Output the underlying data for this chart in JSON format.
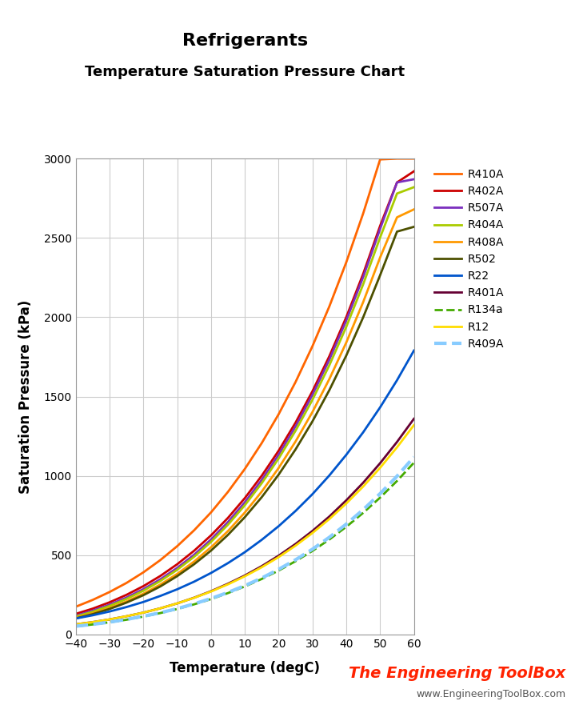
{
  "title": "Refrigerants",
  "subtitle": "Temperature Saturation Pressure Chart",
  "xlabel": "Temperature (degC)",
  "ylabel": "Saturation Pressure (kPa)",
  "xlim": [
    -40,
    60
  ],
  "ylim": [
    0,
    3000
  ],
  "xticks": [
    -40,
    -30,
    -20,
    -10,
    0,
    10,
    20,
    30,
    40,
    50,
    60
  ],
  "yticks": [
    0,
    500,
    1000,
    1500,
    2000,
    2500,
    3000
  ],
  "series": [
    {
      "name": "R410A",
      "color": "#FF6600",
      "linestyle": "-",
      "linewidth": 2.0,
      "temps": [
        -40,
        -35,
        -30,
        -25,
        -20,
        -15,
        -10,
        -5,
        0,
        5,
        10,
        15,
        20,
        25,
        30,
        35,
        40,
        45,
        50,
        55,
        60
      ],
      "pressures": [
        175,
        218,
        268,
        325,
        392,
        469,
        557,
        657,
        770,
        899,
        1044,
        1207,
        1389,
        1592,
        1818,
        2069,
        2347,
        2655,
        2995,
        3000,
        3000
      ]
    },
    {
      "name": "R402A",
      "color": "#CC0000",
      "linestyle": "-",
      "linewidth": 2.0,
      "temps": [
        -40,
        -35,
        -30,
        -25,
        -20,
        -15,
        -10,
        -5,
        0,
        5,
        10,
        15,
        20,
        25,
        30,
        35,
        40,
        45,
        50,
        55,
        60
      ],
      "pressures": [
        130,
        163,
        203,
        250,
        305,
        369,
        443,
        528,
        625,
        735,
        860,
        1001,
        1159,
        1336,
        1534,
        1755,
        2001,
        2274,
        2576,
        2850,
        2920
      ]
    },
    {
      "name": "R507A",
      "color": "#7B2FBE",
      "linestyle": "-",
      "linewidth": 2.0,
      "temps": [
        -40,
        -35,
        -30,
        -25,
        -20,
        -15,
        -10,
        -5,
        0,
        5,
        10,
        15,
        20,
        25,
        30,
        35,
        40,
        45,
        50,
        55,
        60
      ],
      "pressures": [
        118,
        150,
        188,
        233,
        286,
        348,
        420,
        503,
        599,
        709,
        834,
        975,
        1134,
        1312,
        1511,
        1733,
        1980,
        2254,
        2557,
        2850,
        2870
      ]
    },
    {
      "name": "R404A",
      "color": "#AACC00",
      "linestyle": "-",
      "linewidth": 2.0,
      "temps": [
        -40,
        -35,
        -30,
        -25,
        -20,
        -15,
        -10,
        -5,
        0,
        5,
        10,
        15,
        20,
        25,
        30,
        35,
        40,
        45,
        50,
        55,
        60
      ],
      "pressures": [
        113,
        143,
        180,
        224,
        276,
        337,
        408,
        490,
        584,
        692,
        815,
        954,
        1110,
        1285,
        1480,
        1698,
        1940,
        2208,
        2503,
        2780,
        2820
      ]
    },
    {
      "name": "R408A",
      "color": "#FF9900",
      "linestyle": "-",
      "linewidth": 2.0,
      "temps": [
        -40,
        -35,
        -30,
        -25,
        -20,
        -15,
        -10,
        -5,
        0,
        5,
        10,
        15,
        20,
        25,
        30,
        35,
        40,
        45,
        50,
        55,
        60
      ],
      "pressures": [
        105,
        133,
        167,
        208,
        257,
        315,
        382,
        460,
        550,
        652,
        769,
        901,
        1050,
        1217,
        1403,
        1611,
        1841,
        2096,
        2377,
        2630,
        2680
      ]
    },
    {
      "name": "R502",
      "color": "#4D5000",
      "linestyle": "-",
      "linewidth": 2.0,
      "temps": [
        -40,
        -35,
        -30,
        -25,
        -20,
        -15,
        -10,
        -5,
        0,
        5,
        10,
        15,
        20,
        25,
        30,
        35,
        40,
        45,
        50,
        55,
        60
      ],
      "pressures": [
        101,
        128,
        161,
        201,
        248,
        303,
        368,
        443,
        529,
        628,
        740,
        866,
        1008,
        1167,
        1344,
        1541,
        1759,
        2000,
        2265,
        2540,
        2570
      ]
    },
    {
      "name": "R22",
      "color": "#0055CC",
      "linestyle": "-",
      "linewidth": 2.0,
      "temps": [
        -40,
        -35,
        -30,
        -25,
        -20,
        -15,
        -10,
        -5,
        0,
        5,
        10,
        15,
        20,
        25,
        30,
        35,
        40,
        45,
        50,
        55,
        60
      ],
      "pressures": [
        101,
        121,
        145,
        173,
        205,
        243,
        285,
        333,
        388,
        450,
        519,
        597,
        683,
        779,
        885,
        1003,
        1133,
        1275,
        1432,
        1603,
        1790
      ]
    },
    {
      "name": "R401A",
      "color": "#660033",
      "linestyle": "-",
      "linewidth": 2.0,
      "temps": [
        -40,
        -35,
        -30,
        -25,
        -20,
        -15,
        -10,
        -5,
        0,
        5,
        10,
        15,
        20,
        25,
        30,
        35,
        40,
        45,
        50,
        55,
        60
      ],
      "pressures": [
        64,
        78,
        95,
        115,
        138,
        165,
        196,
        232,
        273,
        320,
        372,
        431,
        497,
        571,
        653,
        744,
        846,
        957,
        1080,
        1214,
        1360
      ]
    },
    {
      "name": "R134a",
      "color": "#44AA00",
      "linestyle": "--",
      "linewidth": 2.0,
      "temps": [
        -40,
        -35,
        -30,
        -25,
        -20,
        -15,
        -10,
        -5,
        0,
        5,
        10,
        15,
        20,
        25,
        30,
        35,
        40,
        45,
        50,
        55,
        60
      ],
      "pressures": [
        51,
        63,
        77,
        93,
        113,
        135,
        161,
        190,
        223,
        261,
        303,
        350,
        403,
        462,
        527,
        599,
        679,
        767,
        863,
        968,
        1083
      ]
    },
    {
      "name": "R12",
      "color": "#FFDD00",
      "linestyle": "-",
      "linewidth": 2.0,
      "temps": [
        -40,
        -35,
        -30,
        -25,
        -20,
        -15,
        -10,
        -5,
        0,
        5,
        10,
        15,
        20,
        25,
        30,
        35,
        40,
        45,
        50,
        55,
        60
      ],
      "pressures": [
        64,
        78,
        95,
        115,
        138,
        165,
        196,
        231,
        271,
        316,
        367,
        424,
        488,
        560,
        640,
        728,
        826,
        933,
        1051,
        1180,
        1320
      ]
    },
    {
      "name": "R409A",
      "color": "#88CCFF",
      "linestyle": "--",
      "linewidth": 3.0,
      "temps": [
        -40,
        -35,
        -30,
        -25,
        -20,
        -15,
        -10,
        -5,
        0,
        5,
        10,
        15,
        20,
        25,
        30,
        35,
        40,
        45,
        50,
        55,
        60
      ],
      "pressures": [
        52,
        64,
        78,
        95,
        115,
        137,
        163,
        193,
        227,
        265,
        308,
        356,
        411,
        471,
        538,
        613,
        696,
        787,
        888,
        998,
        1119
      ]
    }
  ],
  "watermark_text1": "The Engineering ToolBox",
  "watermark_text2": "www.EngineeringToolBox.com",
  "watermark_color": "#FF2200",
  "watermark_color2": "#555555",
  "bg_color": "#FFFFFF",
  "grid_color": "#CCCCCC"
}
